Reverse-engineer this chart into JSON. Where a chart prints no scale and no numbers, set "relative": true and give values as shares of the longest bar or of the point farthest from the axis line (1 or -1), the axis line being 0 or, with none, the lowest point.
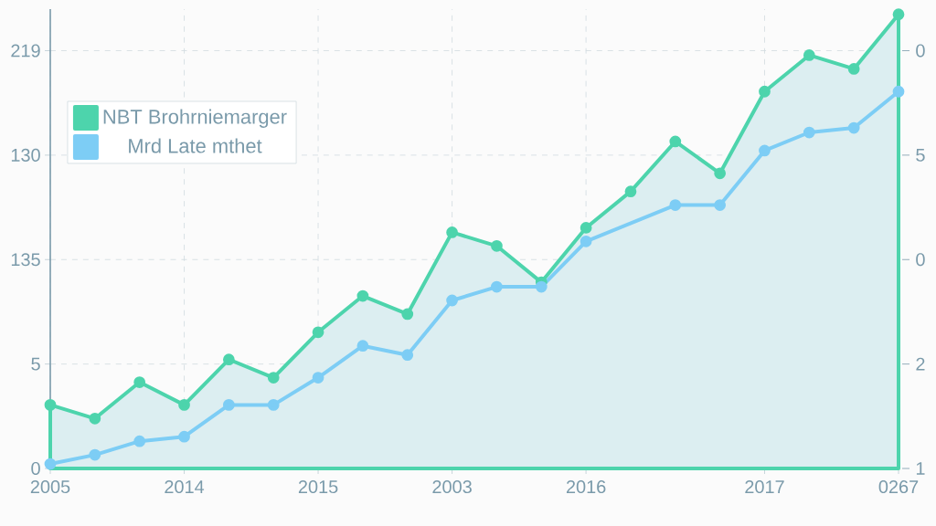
{
  "chart_data": {
    "type": "line",
    "relative": true,
    "categories": [
      "2005",
      null,
      null,
      "2014",
      null,
      null,
      "2015",
      null,
      null,
      "2003",
      null,
      null,
      "2016",
      null,
      null,
      null,
      "2017",
      null,
      null,
      "0267"
    ],
    "annotations": [
      "219",
      "130",
      "135",
      "5",
      "0",
      "0",
      "5",
      "0",
      "2",
      "1"
    ],
    "grid": true,
    "legend": "left",
    "marker": "circle",
    "line_style": "solid",
    "series": [
      {
        "name": "NBT Brohrniemarger",
        "type": "area",
        "color": "#4dd4ac",
        "values": [
          0.14,
          0.11,
          0.19,
          0.14,
          0.24,
          0.2,
          0.3,
          0.38,
          0.34,
          0.52,
          0.49,
          0.41,
          0.53,
          0.61,
          0.72,
          0.65,
          0.83,
          0.91,
          0.88,
          1
        ]
      },
      {
        "name": "Mrd Late mthet",
        "color": "#7dcdf5",
        "values": [
          0.01,
          0.03,
          0.06,
          0.07,
          0.14,
          0.14,
          0.2,
          0.27,
          0.25,
          0.37,
          0.4,
          0.4,
          0.5,
          null,
          0.58,
          0.58,
          0.7,
          0.74,
          0.75,
          0.83
        ]
      }
    ]
  }
}
